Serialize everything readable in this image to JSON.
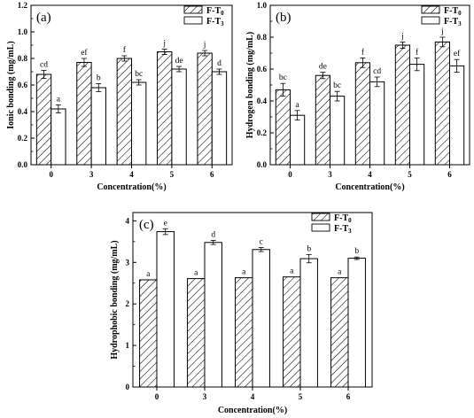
{
  "chart_data": [
    {
      "type": "bar",
      "panel": "(a)",
      "ylabel": "Ionic bonding (mg/mL)",
      "xlabel": "Concentration(%)",
      "categories": [
        "0",
        "3",
        "4",
        "5",
        "6"
      ],
      "ylim": [
        0,
        1.2
      ],
      "yticks": [
        "0.0",
        "0.2",
        "0.4",
        "0.6",
        "0.8",
        "1.0",
        "1.2"
      ],
      "legend_position": "top-right",
      "series": [
        {
          "name": "F-T",
          "sub": "0",
          "pattern": "hatched",
          "values": [
            0.68,
            0.77,
            0.8,
            0.85,
            0.84
          ],
          "errors": [
            0.03,
            0.03,
            0.02,
            0.02,
            0.02
          ],
          "letters": [
            "cd",
            "ef",
            "f",
            "j",
            "j"
          ]
        },
        {
          "name": "F-T",
          "sub": "3",
          "pattern": "open",
          "values": [
            0.42,
            0.58,
            0.62,
            0.72,
            0.7
          ],
          "errors": [
            0.03,
            0.03,
            0.02,
            0.02,
            0.02
          ],
          "letters": [
            "a",
            "b",
            "bc",
            "de",
            "d"
          ]
        }
      ]
    },
    {
      "type": "bar",
      "panel": "(b)",
      "ylabel": "Hydrogen bonding (mg/mL)",
      "xlabel": "Concentration(%)",
      "categories": [
        "0",
        "3",
        "4",
        "5",
        "6"
      ],
      "ylim": [
        0,
        1.0
      ],
      "yticks": [
        "0.0",
        "0.2",
        "0.4",
        "0.6",
        "0.8",
        "1.0"
      ],
      "legend_position": "top-right",
      "series": [
        {
          "name": "F-T",
          "sub": "0",
          "pattern": "hatched",
          "values": [
            0.47,
            0.56,
            0.64,
            0.75,
            0.77
          ],
          "errors": [
            0.04,
            0.02,
            0.03,
            0.02,
            0.03
          ],
          "letters": [
            "bc",
            "de",
            "f",
            "j",
            "j"
          ]
        },
        {
          "name": "F-T",
          "sub": "3",
          "pattern": "open",
          "values": [
            0.31,
            0.43,
            0.52,
            0.63,
            0.62
          ],
          "errors": [
            0.03,
            0.03,
            0.03,
            0.04,
            0.04
          ],
          "letters": [
            "a",
            "bc",
            "cd",
            "f",
            "ef"
          ]
        }
      ]
    },
    {
      "type": "bar",
      "panel": "(c)",
      "ylabel": "Hydrophobic bonding (mg/mL)",
      "xlabel": "Concentration(%)",
      "categories": [
        "0",
        "3",
        "4",
        "5",
        "6"
      ],
      "ylim": [
        0,
        4.2
      ],
      "yticks": [
        "0",
        "1",
        "2",
        "3",
        "4"
      ],
      "legend_position": "top-right",
      "series": [
        {
          "name": "F-T",
          "sub": "0",
          "pattern": "hatched",
          "values": [
            2.58,
            2.61,
            2.63,
            2.65,
            2.63
          ],
          "errors": [
            0,
            0,
            0,
            0,
            0
          ],
          "letters": [
            "a",
            "a",
            "a",
            "a",
            "a"
          ]
        },
        {
          "name": "F-T",
          "sub": "3",
          "pattern": "open",
          "values": [
            3.74,
            3.48,
            3.31,
            3.09,
            3.1
          ],
          "errors": [
            0.07,
            0.05,
            0.05,
            0.1,
            0.03
          ],
          "letters": [
            "e",
            "d",
            "c",
            "b",
            "b"
          ]
        }
      ]
    }
  ]
}
